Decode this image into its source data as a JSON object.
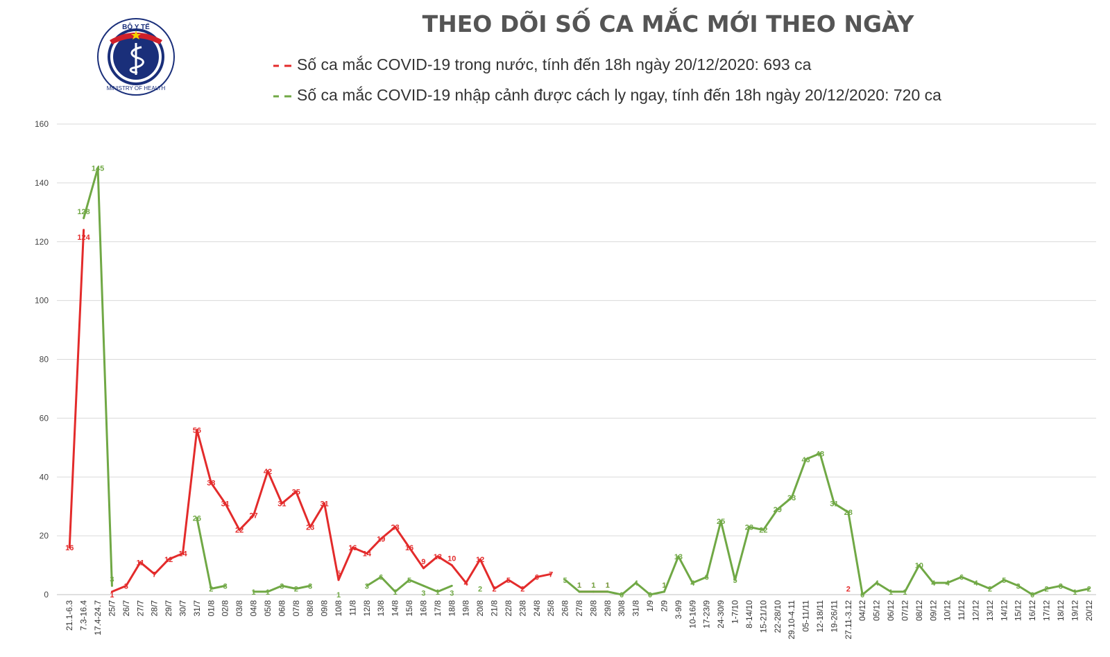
{
  "logo": {
    "top_text": "BỘ Y TẾ",
    "bottom_text": "MINISTRY OF HEALTH"
  },
  "colors": {
    "domestic": "#e32b2b",
    "imported": "#70a845",
    "grid": "#d9d9d9",
    "axis": "#bfbfbf"
  },
  "chart_data": {
    "type": "line",
    "title": "THEO DÕI SỐ CA MẮC MỚI THEO NGÀY",
    "ylim": [
      0,
      160
    ],
    "yticks": [
      0,
      20,
      40,
      60,
      80,
      100,
      120,
      140,
      160
    ],
    "grid": true,
    "legend_placement": "top",
    "categories": [
      "21.1-6.3",
      "7.3-16.4",
      "17.4-24.7",
      "25/7",
      "26/7",
      "27/7",
      "28/7",
      "29/7",
      "30/7",
      "31/7",
      "01/8",
      "02/8",
      "03/8",
      "04/8",
      "05/8",
      "06/8",
      "07/8",
      "08/8",
      "09/8",
      "10/8",
      "11/8",
      "12/8",
      "13/8",
      "14/8",
      "15/8",
      "16/8",
      "17/8",
      "18/8",
      "19/8",
      "20/8",
      "21/8",
      "22/8",
      "23/8",
      "24/8",
      "25/8",
      "26/8",
      "27/8",
      "28/8",
      "29/8",
      "30/8",
      "31/8",
      "1/9",
      "2/9",
      "3-9/9",
      "10-16/9",
      "17-23/9",
      "24-30/9",
      "1-7/10",
      "8-14/10",
      "15-21/10",
      "22-28/10",
      "29.10-4.11",
      "05-11/11",
      "12-18/11",
      "19-26/11",
      "27.11-3.12",
      "04/12",
      "05/12",
      "06/12",
      "07/12",
      "08/12",
      "09/12",
      "10/12",
      "11/12",
      "12/12",
      "13/12",
      "14/12",
      "15/12",
      "16/12",
      "17/12",
      "18/12",
      "19/12",
      "20/12"
    ],
    "series": [
      {
        "name": "Số ca mắc COVID-19 trong nước, tính đến 18h ngày 20/12/2020: 693 ca",
        "color": "#e32b2b",
        "values": [
          16,
          124,
          null,
          1,
          3,
          11,
          7,
          12,
          14,
          56,
          38,
          31,
          22,
          27,
          42,
          31,
          35,
          23,
          31,
          5,
          16,
          14,
          19,
          23,
          16,
          9,
          13,
          10,
          4,
          12,
          2,
          5,
          2,
          6,
          7,
          null,
          1,
          1,
          1,
          null,
          null,
          null,
          1,
          null,
          null,
          null,
          null,
          null,
          null,
          null,
          null,
          null,
          null,
          null,
          null,
          2,
          null,
          null,
          null,
          null,
          null,
          null,
          null,
          null,
          null,
          null,
          null,
          null,
          null,
          null,
          null,
          null,
          null
        ]
      },
      {
        "name": "Số ca mắc COVID-19 nhập cảnh được cách ly ngay, tính đến 18h ngày 20/12/2020: 720 ca",
        "color": "#70a845",
        "values": [
          null,
          128,
          145,
          3,
          null,
          null,
          null,
          null,
          null,
          26,
          2,
          3,
          null,
          1,
          1,
          3,
          2,
          3,
          null,
          1,
          null,
          3,
          6,
          1,
          5,
          3,
          1,
          3,
          null,
          2,
          null,
          null,
          null,
          null,
          null,
          5,
          1,
          1,
          1,
          0,
          4,
          0,
          1,
          13,
          4,
          6,
          25,
          5,
          23,
          22,
          29,
          33,
          46,
          48,
          31,
          28,
          0,
          4,
          1,
          1,
          10,
          4,
          4,
          6,
          4,
          2,
          5,
          3,
          0,
          2,
          3,
          1,
          2
        ]
      }
    ]
  }
}
